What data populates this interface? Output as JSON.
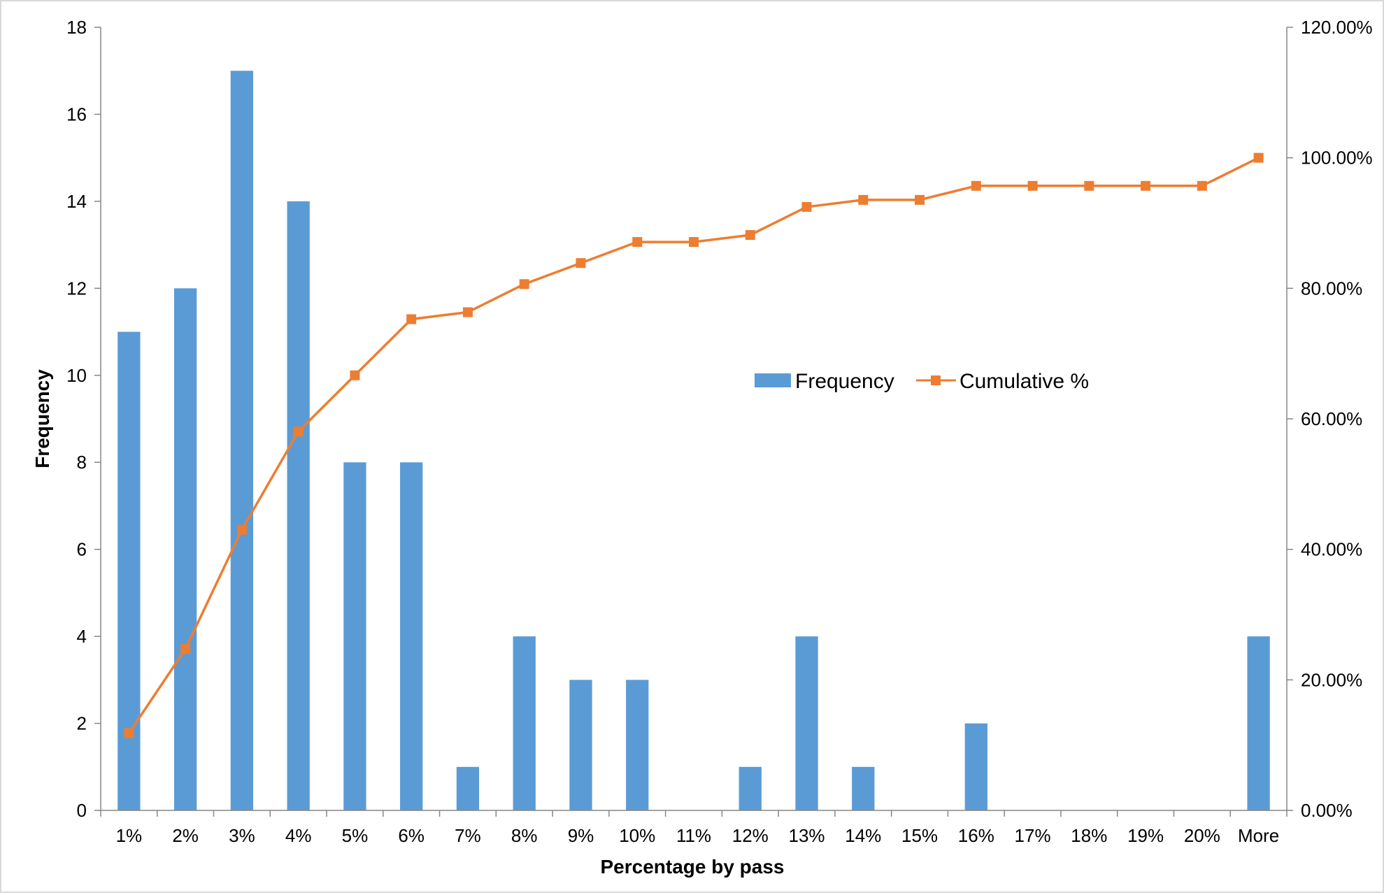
{
  "chart_data": {
    "type": "bar",
    "categories": [
      "1%",
      "2%",
      "3%",
      "4%",
      "5%",
      "6%",
      "7%",
      "8%",
      "9%",
      "10%",
      "11%",
      "12%",
      "13%",
      "14%",
      "15%",
      "16%",
      "17%",
      "18%",
      "19%",
      "20%",
      "More"
    ],
    "series": [
      {
        "name": "Frequency",
        "type": "bar",
        "axis": "left",
        "color": "#5b9bd5",
        "values": [
          11,
          12,
          17,
          14,
          8,
          8,
          1,
          4,
          3,
          3,
          0,
          1,
          4,
          1,
          0,
          2,
          0,
          0,
          0,
          0,
          4
        ]
      },
      {
        "name": "Cumulative %",
        "type": "line",
        "axis": "right",
        "marker": "square",
        "color": "#ed7d31",
        "values": [
          11.83,
          24.73,
          43.01,
          58.06,
          66.67,
          75.27,
          76.34,
          80.65,
          83.87,
          87.1,
          87.1,
          88.17,
          92.47,
          93.55,
          93.55,
          95.7,
          95.7,
          95.7,
          95.7,
          95.7,
          100.0
        ]
      }
    ],
    "xlabel": "Percentage by pass",
    "ylabel": "Frequency",
    "ylim": [
      0,
      18
    ],
    "y_ticks": [
      "0",
      "2",
      "4",
      "6",
      "8",
      "10",
      "12",
      "14",
      "16",
      "18"
    ],
    "y2lim": [
      0,
      120
    ],
    "y2_ticks": [
      "0.00%",
      "20.00%",
      "40.00%",
      "60.00%",
      "80.00%",
      "100.00%",
      "120.00%"
    ],
    "grid": false,
    "legend": {
      "position": "center-right",
      "entries": [
        "Frequency",
        "Cumulative %"
      ]
    }
  }
}
